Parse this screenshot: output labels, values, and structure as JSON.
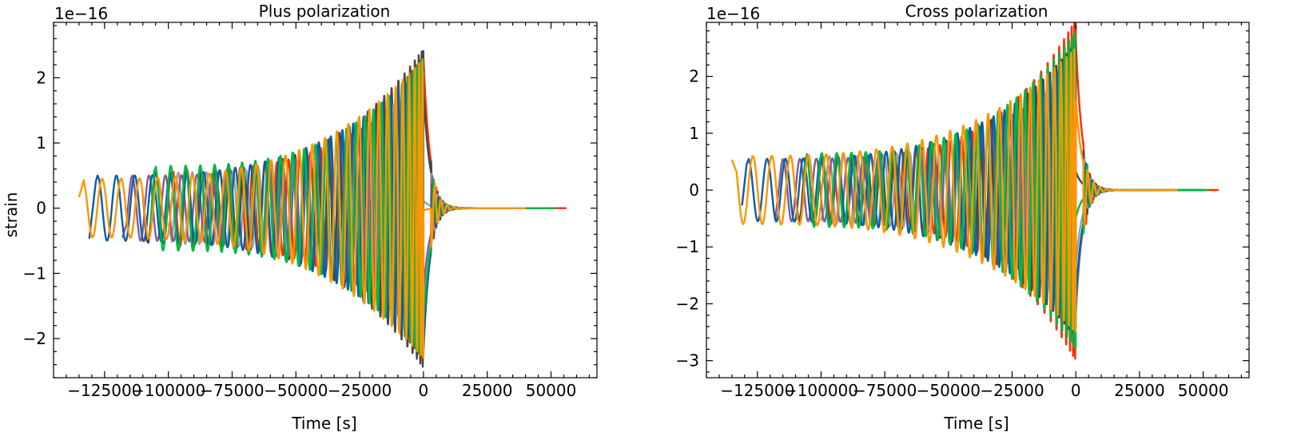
{
  "chart_data": [
    {
      "type": "line",
      "title": "Plus polarization",
      "xlabel": "Time [s]",
      "ylabel": "strain",
      "offset_label": "1e−16",
      "xlim": [
        -145000,
        68000
      ],
      "ylim": [
        -2.6,
        2.85
      ],
      "x_ticks": [
        -125000,
        -100000,
        -75000,
        -50000,
        -25000,
        0,
        25000,
        50000
      ],
      "x_tick_labels": [
        "−125000",
        "−100000",
        "−75000",
        "−50000",
        "−25000",
        "0",
        "25000",
        "50000"
      ],
      "y_ticks": [
        -2,
        -1,
        0,
        1,
        2
      ],
      "y_tick_labels": [
        "−2",
        "−1",
        "0",
        "1",
        "2"
      ],
      "grid": false,
      "legend": "none",
      "series": [
        {
          "color": "#ff2c00",
          "x_start": -98000,
          "x_end": 56000,
          "amp_start": 0.6,
          "peak": 2.35,
          "phase": 0.3
        },
        {
          "color": "#474747",
          "x_start": -110000,
          "x_end": 50000,
          "amp_start": 0.55,
          "peak": 2.45,
          "phase": 1.2
        },
        {
          "color": "#9e9e9e",
          "x_start": -100000,
          "x_end": 44000,
          "amp_start": 0.55,
          "peak": 2.1,
          "phase": 2.0
        },
        {
          "color": "#845b97",
          "x_start": -118000,
          "x_end": 47000,
          "amp_start": 0.5,
          "peak": 2.0,
          "phase": 2.7
        },
        {
          "color": "#0c5da5",
          "x_start": -131000,
          "x_end": 49000,
          "amp_start": 0.5,
          "peak": 2.2,
          "phase": 3.5
        },
        {
          "color": "#00b945",
          "x_start": -107000,
          "x_end": 52000,
          "amp_start": 0.65,
          "peak": 2.3,
          "phase": 4.3
        },
        {
          "color": "#ff9500",
          "x_start": -135000,
          "x_end": 40000,
          "amp_start": 0.45,
          "peak": 2.3,
          "phase": 5.1
        }
      ]
    },
    {
      "type": "line",
      "title": "Cross polarization",
      "xlabel": "Time [s]",
      "ylabel": "",
      "offset_label": "1e−16",
      "xlim": [
        -145000,
        68000
      ],
      "ylim": [
        -3.3,
        2.95
      ],
      "x_ticks": [
        -125000,
        -100000,
        -75000,
        -50000,
        -25000,
        0,
        25000,
        50000
      ],
      "x_tick_labels": [
        "−125000",
        "−100000",
        "−75000",
        "−50000",
        "−25000",
        "0",
        "25000",
        "50000"
      ],
      "y_ticks": [
        -3,
        -2,
        -1,
        0,
        1,
        2
      ],
      "y_tick_labels": [
        "−3",
        "−2",
        "−1",
        "0",
        "1",
        "2"
      ],
      "grid": false,
      "legend": "none",
      "series": [
        {
          "color": "#ff2c00",
          "x_start": -98000,
          "x_end": 56000,
          "amp_start": 0.6,
          "peak": 3.0,
          "phase": 1.0
        },
        {
          "color": "#474747",
          "x_start": -110000,
          "x_end": 50000,
          "amp_start": 0.6,
          "peak": 2.6,
          "phase": 1.9
        },
        {
          "color": "#9e9e9e",
          "x_start": -100000,
          "x_end": 44000,
          "amp_start": 0.6,
          "peak": 2.2,
          "phase": 2.7
        },
        {
          "color": "#845b97",
          "x_start": -118000,
          "x_end": 47000,
          "amp_start": 0.55,
          "peak": 2.2,
          "phase": 3.4
        },
        {
          "color": "#0c5da5",
          "x_start": -131000,
          "x_end": 49000,
          "amp_start": 0.55,
          "peak": 2.4,
          "phase": 4.2
        },
        {
          "color": "#00b945",
          "x_start": -107000,
          "x_end": 52000,
          "amp_start": 0.65,
          "peak": 2.8,
          "phase": 5.0
        },
        {
          "color": "#ff9500",
          "x_start": -135000,
          "x_end": 40000,
          "amp_start": 0.6,
          "peak": 2.5,
          "phase": 5.8
        }
      ]
    }
  ]
}
